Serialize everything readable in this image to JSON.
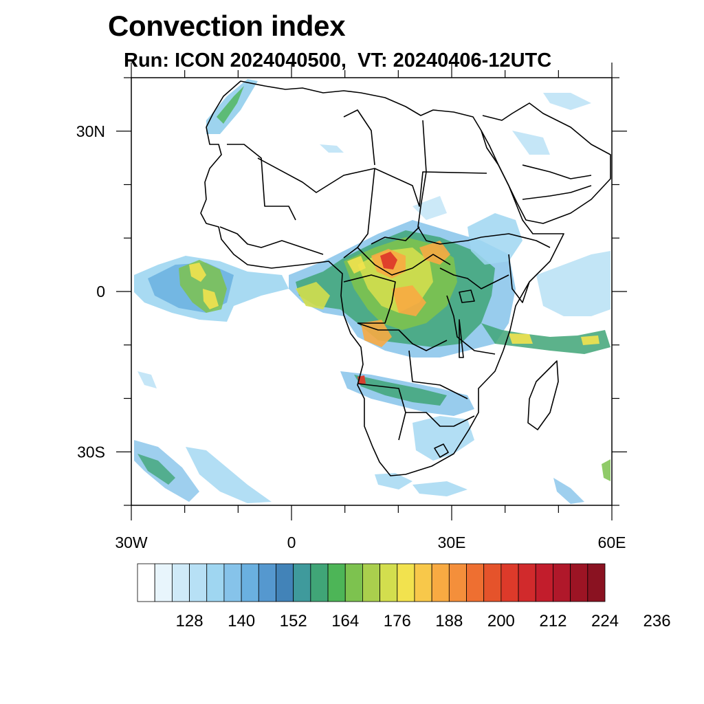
{
  "title": "Convection index",
  "subtitle": "Run: ICON 2024040500,  VT: 20240406-12UTC",
  "map": {
    "lon_range": [
      -30,
      60
    ],
    "lat_range": [
      -40,
      40
    ],
    "x_ticks": [
      {
        "value": -30,
        "label": "30W"
      },
      {
        "value": 0,
        "label": "0"
      },
      {
        "value": 30,
        "label": "30E"
      },
      {
        "value": 60,
        "label": "60E"
      }
    ],
    "y_ticks": [
      {
        "value": 30,
        "label": "30N"
      },
      {
        "value": 0,
        "label": "0"
      },
      {
        "value": -30,
        "label": "30S"
      }
    ],
    "minor_step_deg": 10
  },
  "colorbar": {
    "colors": [
      "#ffffff",
      "#e8f5fc",
      "#cfeaf8",
      "#b7e0f5",
      "#9fd6f1",
      "#86c3ea",
      "#6ab0e0",
      "#5598cf",
      "#4283b8",
      "#3f9a9c",
      "#40a577",
      "#4db557",
      "#7dc24f",
      "#aacf4d",
      "#d3de4e",
      "#f2e24e",
      "#f8c84a",
      "#f8aa42",
      "#f48f3b",
      "#ee6f31",
      "#e5532b",
      "#dd3a2a",
      "#d12a2c",
      "#c21d2c",
      "#b0182a",
      "#9c1424",
      "#8a1221"
    ],
    "labels": [
      "128",
      "140",
      "152",
      "164",
      "176",
      "188",
      "200",
      "212",
      "224",
      "236"
    ]
  },
  "colors": {
    "land_outline": "#000000",
    "frame": "#000000"
  }
}
